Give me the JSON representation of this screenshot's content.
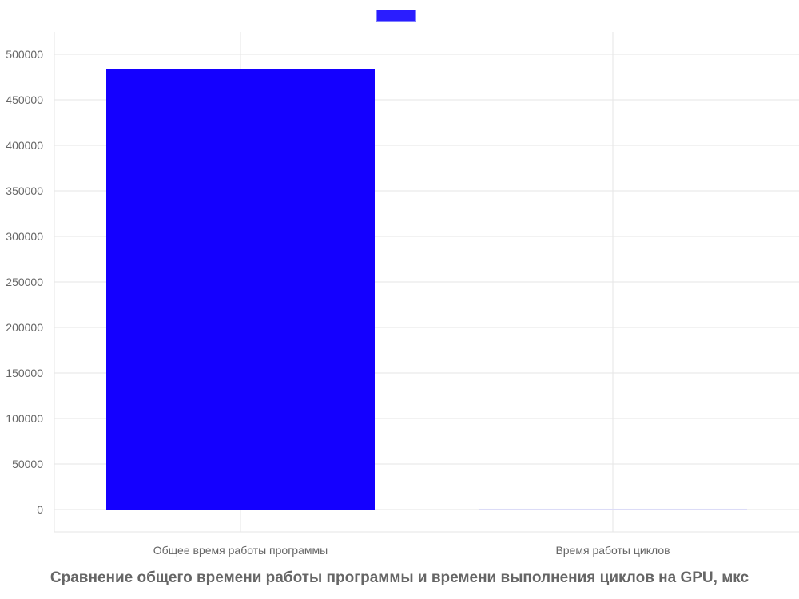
{
  "chart_data": {
    "type": "bar",
    "title": "Сравнение общего времени работы программы и времени выполнения циклов на GPU, мкс",
    "categories": [
      "Общее время работы программы",
      "Время работы циклов"
    ],
    "series": [
      {
        "values": [
          484000,
          900
        ],
        "colors": [
          "#1400ff",
          "#dcdcf7"
        ]
      }
    ],
    "legend_color": "#2a1dff",
    "legend_position": "top",
    "ylim": [
      0,
      500000
    ],
    "yticks": [
      0,
      50000,
      100000,
      150000,
      200000,
      250000,
      300000,
      350000,
      400000,
      450000,
      500000
    ],
    "ytick_labels": [
      "0",
      "50000",
      "100000",
      "150000",
      "200000",
      "250000",
      "300000",
      "350000",
      "400000",
      "450000",
      "500000"
    ],
    "grid": true,
    "colors": {
      "grid": "#e5e5e5",
      "tick_text": "#666666",
      "title_text": "#666666"
    }
  }
}
